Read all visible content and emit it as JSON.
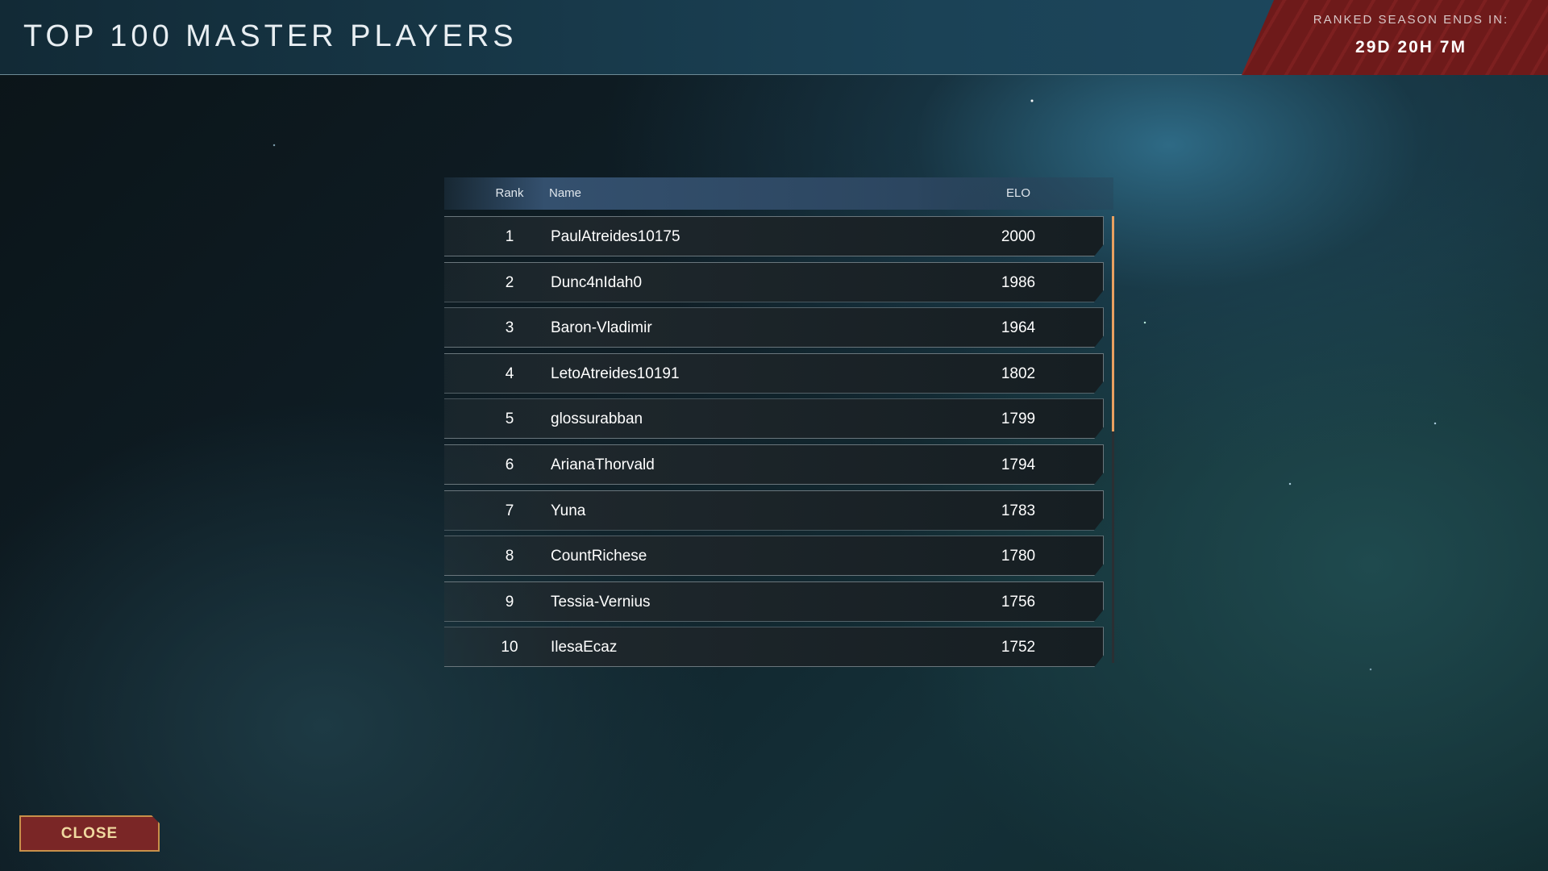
{
  "header": {
    "title": "TOP 100 MASTER PLAYERS"
  },
  "season": {
    "label": "RANKED SEASON ENDS IN:",
    "time": "29D 20H 7M"
  },
  "table": {
    "columns": {
      "rank": "Rank",
      "name": "Name",
      "elo": "ELO"
    },
    "rows": [
      {
        "rank": "1",
        "name": "PaulAtreides10175",
        "elo": "2000"
      },
      {
        "rank": "2",
        "name": "Dunc4nIdah0",
        "elo": "1986"
      },
      {
        "rank": "3",
        "name": "Baron-Vladimir",
        "elo": "1964"
      },
      {
        "rank": "4",
        "name": "LetoAtreides10191",
        "elo": "1802"
      },
      {
        "rank": "5",
        "name": "glossurabban",
        "elo": "1799"
      },
      {
        "rank": "6",
        "name": "ArianaThorvald",
        "elo": "1794"
      },
      {
        "rank": "7",
        "name": "Yuna",
        "elo": "1783"
      },
      {
        "rank": "8",
        "name": "CountRichese",
        "elo": "1780"
      },
      {
        "rank": "9",
        "name": "Tessia-Vernius",
        "elo": "1756"
      },
      {
        "rank": "10",
        "name": "IlesaEcaz",
        "elo": "1752"
      }
    ]
  },
  "close_label": "CLOSE",
  "colors": {
    "accent_red": "#7a2626",
    "scroll_thumb": "#e8a060",
    "gold": "#c8904a"
  }
}
